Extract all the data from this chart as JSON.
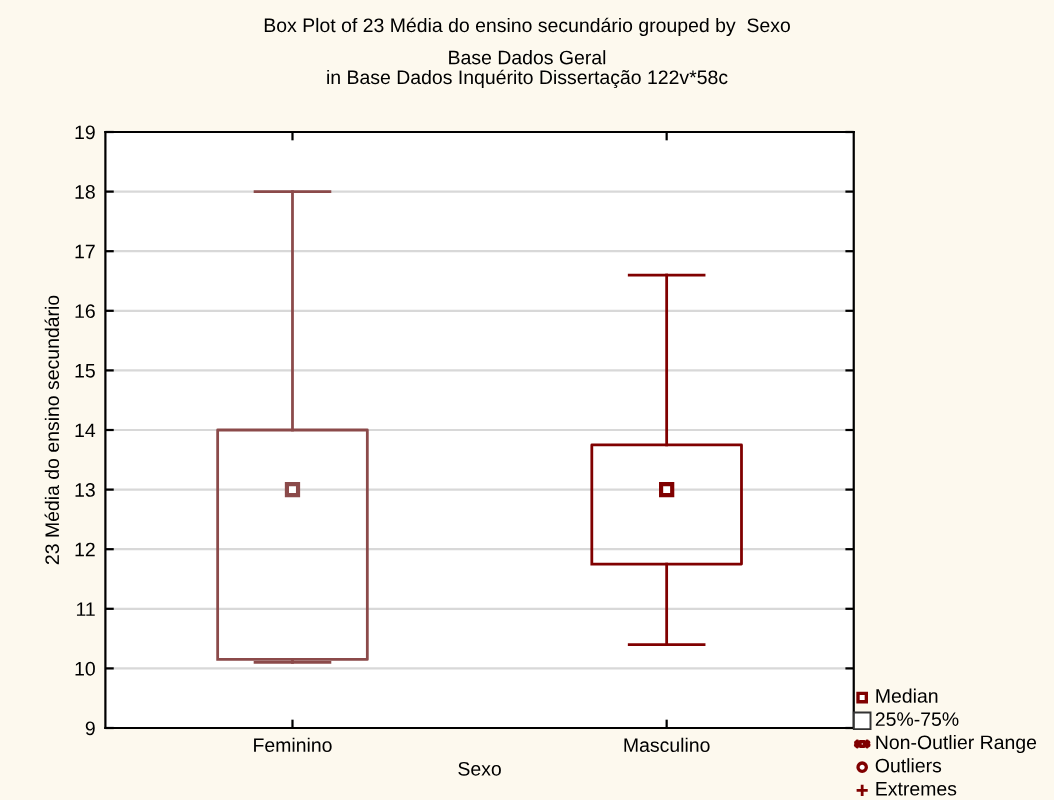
{
  "chart_data": {
    "type": "box",
    "title": "Box Plot of 23 Média do ensino secundário grouped by  Sexo",
    "subtitle": "Base Dados Geral\nin Base Dados Inquérito Dissertação 122v*58c",
    "xlabel": "Sexo",
    "ylabel": "23 Média do ensino secundário",
    "categories": [
      "Feminino",
      "Masculino"
    ],
    "boxes": [
      {
        "low": 10.1,
        "q1": 10.15,
        "median": 13,
        "q3": 14,
        "high": 18
      },
      {
        "low": 10.4,
        "q1": 11.75,
        "median": 13,
        "q3": 13.75,
        "high": 16.6
      }
    ],
    "colors": [
      "#8b4a4a",
      "#800000"
    ],
    "ylim": [
      9,
      19
    ],
    "yticks": [
      9,
      10,
      11,
      12,
      13,
      14,
      15,
      16,
      17,
      18,
      19
    ],
    "grid": "y",
    "marker": "square",
    "annotations": [
      "Median",
      "25%-75%",
      "Non-Outlier Range",
      "Outliers",
      "Extremes"
    ]
  }
}
